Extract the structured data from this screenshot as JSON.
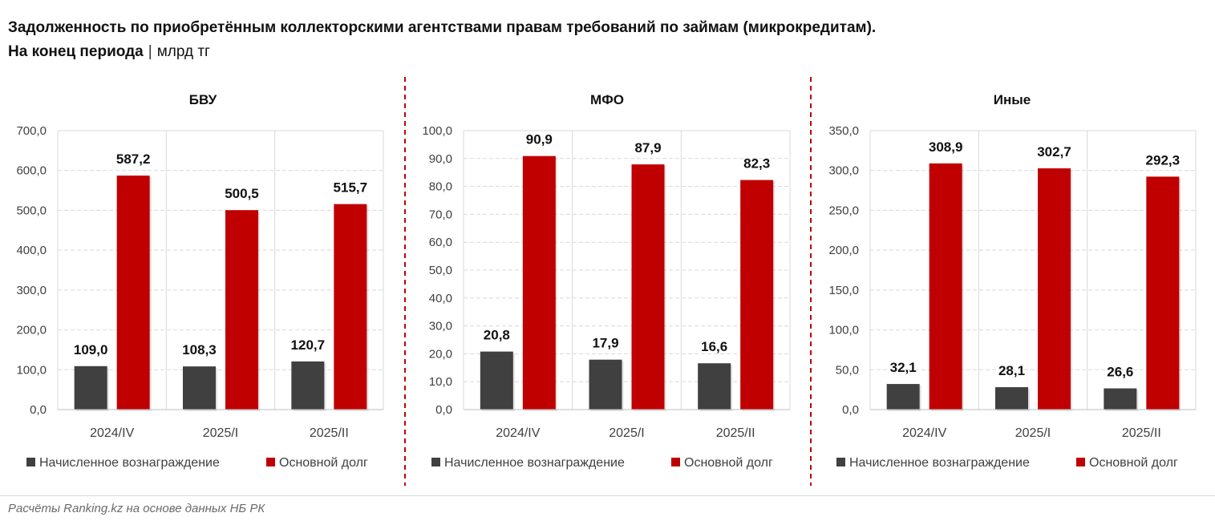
{
  "header": {
    "title_line1": "Задолженность по приобретённым коллекторскими агентствами правам требований по займам (микрокредитам).",
    "title_line2_bold": "На конец периода",
    "title_sep": "|",
    "title_unit": "млрд тг"
  },
  "source": "Расчёты Ranking.kz на основе данных НБ РК",
  "colors": {
    "interest": "#404040",
    "principal": "#c00000",
    "divider": "#c00000",
    "grid": "#d9d9d9"
  },
  "chart_data": [
    {
      "type": "bar",
      "title": "БВУ",
      "categories": [
        "2024/IV",
        "2025/I",
        "2025/II"
      ],
      "series": [
        {
          "name": "Начисленное вознаграждение",
          "values": [
            109.0,
            108.3,
            120.7
          ],
          "labels": [
            "109,0",
            "108,3",
            "120,7"
          ]
        },
        {
          "name": "Основной долг",
          "values": [
            587.2,
            500.5,
            515.7
          ],
          "labels": [
            "587,2",
            "500,5",
            "515,7"
          ]
        }
      ],
      "ylim": [
        0,
        700
      ],
      "yticks": [
        "0,0",
        "100,0",
        "200,0",
        "300,0",
        "400,0",
        "500,0",
        "600,0",
        "700,0"
      ],
      "legend": "bottom"
    },
    {
      "type": "bar",
      "title": "МФО",
      "categories": [
        "2024/IV",
        "2025/I",
        "2025/II"
      ],
      "series": [
        {
          "name": "Начисленное вознаграждение",
          "values": [
            20.8,
            17.9,
            16.6
          ],
          "labels": [
            "20,8",
            "17,9",
            "16,6"
          ]
        },
        {
          "name": "Основной долг",
          "values": [
            90.9,
            87.9,
            82.3
          ],
          "labels": [
            "90,9",
            "87,9",
            "82,3"
          ]
        }
      ],
      "ylim": [
        0,
        100
      ],
      "yticks": [
        "0,0",
        "10,0",
        "20,0",
        "30,0",
        "40,0",
        "50,0",
        "60,0",
        "70,0",
        "80,0",
        "90,0",
        "100,0"
      ],
      "legend": "bottom"
    },
    {
      "type": "bar",
      "title": "Иные",
      "categories": [
        "2024/IV",
        "2025/I",
        "2025/II"
      ],
      "series": [
        {
          "name": "Начисленное вознаграждение",
          "values": [
            32.1,
            28.1,
            26.6
          ],
          "labels": [
            "32,1",
            "28,1",
            "26,6"
          ]
        },
        {
          "name": "Основной долг",
          "values": [
            308.9,
            302.7,
            292.3
          ],
          "labels": [
            "308,9",
            "302,7",
            "292,3"
          ]
        }
      ],
      "ylim": [
        0,
        350
      ],
      "yticks": [
        "0,0",
        "50,0",
        "100,0",
        "150,0",
        "200,0",
        "250,0",
        "300,0",
        "350,0"
      ],
      "legend": "bottom"
    }
  ]
}
